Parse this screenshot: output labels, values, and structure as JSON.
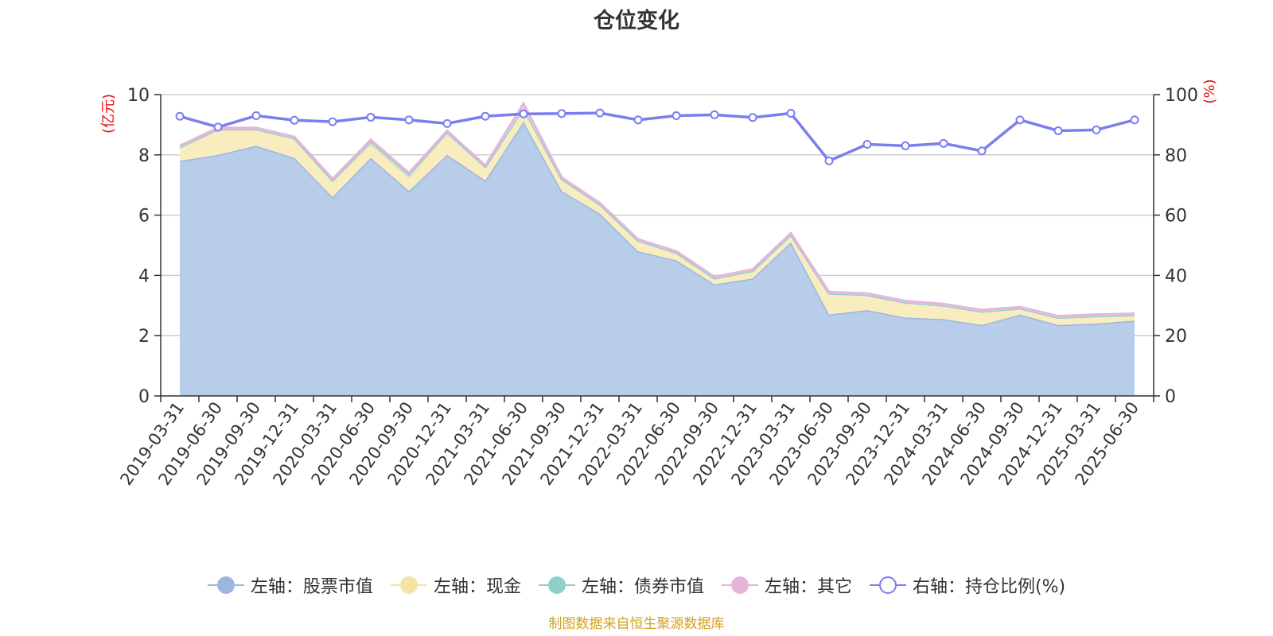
{
  "chart_data": {
    "type": "area",
    "title": "仓位变化",
    "y_left_label": "(亿元)",
    "y_right_label": "(%)",
    "ylim_left": [
      0,
      10
    ],
    "ylim_right": [
      0,
      100
    ],
    "y_left_ticks": [
      "0",
      "2",
      "4",
      "6",
      "8",
      "10"
    ],
    "y_right_ticks": [
      "0",
      "20",
      "40",
      "60",
      "80",
      "100"
    ],
    "categories": [
      "2019-03-31",
      "2019-06-30",
      "2019-09-30",
      "2019-12-31",
      "2020-03-31",
      "2020-06-30",
      "2020-09-30",
      "2020-12-31",
      "2021-03-31",
      "2021-06-30",
      "2021-09-30",
      "2021-12-31",
      "2022-03-31",
      "2022-06-30",
      "2022-09-30",
      "2022-12-31",
      "2023-03-31",
      "2023-06-30",
      "2023-09-30",
      "2023-12-31",
      "2024-03-31",
      "2024-06-30",
      "2024-09-30",
      "2024-12-31",
      "2025-03-31",
      "2025-06-30"
    ],
    "x_tick_labels": [
      "2019-03-31",
      "2019-06-30",
      "2019-09-30",
      "2019-12-31",
      "2020-03-31",
      "2020-06-30",
      "2020-09-30",
      "2020-12-31",
      "2021-03-31",
      "2021-06-30",
      "2021-09-30",
      "2021-12-31",
      "2022-03-31",
      "2022-06-30",
      "2022-09-30",
      "2022-12-31",
      "2023-03-31",
      "2023-06-30",
      "2023-09-30",
      "2023-12-31",
      "2024-03-31",
      "2024-06-30",
      "2024-09-30",
      "2024-12-31",
      "2025-03-31",
      "2025-06-30"
    ],
    "series": [
      {
        "name": "左轴：股票市值",
        "axis": "left",
        "stack": true,
        "color": "#9bb7e0",
        "fill": "#b7cdea",
        "values": [
          7.8,
          8.0,
          8.3,
          7.9,
          6.6,
          7.9,
          6.8,
          8.0,
          7.15,
          9.1,
          6.8,
          6.05,
          4.8,
          4.5,
          3.7,
          3.9,
          5.1,
          2.7,
          2.85,
          2.6,
          2.55,
          2.35,
          2.7,
          2.35,
          2.4,
          2.5
        ]
      },
      {
        "name": "左轴：现金",
        "axis": "left",
        "stack": true,
        "color": "#f5e3a3",
        "fill": "#f9edc0",
        "values": [
          0.45,
          0.85,
          0.55,
          0.65,
          0.55,
          0.45,
          0.45,
          0.75,
          0.45,
          0.45,
          0.4,
          0.3,
          0.35,
          0.25,
          0.2,
          0.25,
          0.25,
          0.7,
          0.5,
          0.5,
          0.45,
          0.45,
          0.2,
          0.25,
          0.25,
          0.18
        ]
      },
      {
        "name": "左轴：债券市值",
        "axis": "left",
        "stack": true,
        "color": "#8fd0cf",
        "fill": "#bde6e5",
        "values": [
          0,
          0,
          0,
          0,
          0,
          0.1,
          0.1,
          0,
          0,
          0,
          0,
          0,
          0,
          0,
          0,
          0,
          0,
          0,
          0,
          0,
          0,
          0,
          0,
          0,
          0,
          0
        ]
      },
      {
        "name": "左轴：其它",
        "axis": "left",
        "stack": true,
        "color": "#e6b5da",
        "fill": "#f2dcec",
        "values": [
          0.05,
          0.05,
          0.05,
          0.05,
          0.05,
          0.05,
          0.05,
          0.05,
          0.05,
          0.15,
          0.05,
          0.05,
          0.05,
          0.05,
          0.05,
          0.05,
          0.05,
          0.05,
          0.05,
          0.05,
          0.05,
          0.05,
          0.05,
          0.05,
          0.05,
          0.05
        ]
      },
      {
        "name": "右轴：持仓比例(%)",
        "axis": "right",
        "stack": false,
        "color": "#7a7ef0",
        "values": [
          92.8,
          89.2,
          93.0,
          91.5,
          91.0,
          92.5,
          91.6,
          90.4,
          92.8,
          93.6,
          93.7,
          93.9,
          91.6,
          93.0,
          93.3,
          92.4,
          93.8,
          78.0,
          83.5,
          83.0,
          83.8,
          81.3,
          91.6,
          88.0,
          88.3,
          91.6
        ]
      }
    ],
    "grid": true,
    "legend_position": "bottom"
  },
  "legend": [
    {
      "label": "左轴：股票市值",
      "color": "#9bb7e0",
      "hollow": false
    },
    {
      "label": "左轴：现金",
      "color": "#f5e3a3",
      "hollow": false
    },
    {
      "label": "左轴：债券市值",
      "color": "#8fd0cf",
      "hollow": false
    },
    {
      "label": "左轴：其它",
      "color": "#e6b5da",
      "hollow": false
    },
    {
      "label": "右轴：持仓比例(%)",
      "color": "#7a7ef0",
      "hollow": true
    }
  ],
  "source_note": "制图数据来自恒生聚源数据库",
  "colors": {
    "axis_label": "#ee1111",
    "grid": "#cccccc",
    "axis_line": "#333333",
    "text": "#333333"
  }
}
